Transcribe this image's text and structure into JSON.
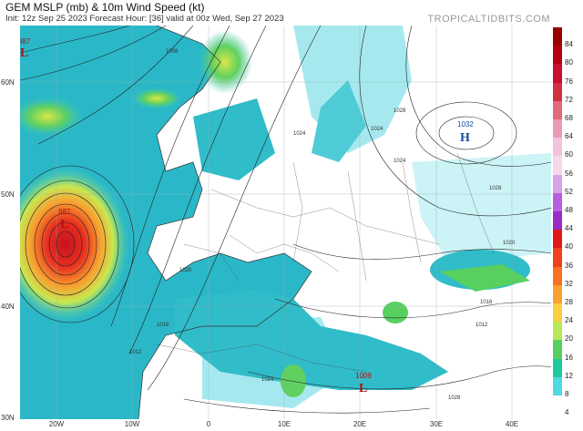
{
  "header": {
    "title": "GEM MSLP (mb) & 10m Wind Speed (kt)",
    "subtitle": "Init: 12z Sep 25 2023   Forecast Hour: [36]   valid at 00z Wed, Sep 27 2023",
    "site": "TROPICALTIDBITS.COM"
  },
  "axes": {
    "lat_labels": [
      "60N",
      "50N",
      "40N",
      "30N"
    ],
    "lon_labels": [
      "20W",
      "10W",
      "0",
      "10E",
      "20E",
      "30E",
      "40E"
    ]
  },
  "legend": {
    "unit": "kt",
    "ticks": [
      "84",
      "80",
      "76",
      "72",
      "68",
      "64",
      "60",
      "56",
      "52",
      "48",
      "44",
      "40",
      "36",
      "32",
      "28",
      "24",
      "20",
      "16",
      "12",
      "8",
      "4"
    ],
    "colors": [
      "#9a0000",
      "#b40010",
      "#c8102e",
      "#d03040",
      "#e06a7c",
      "#ea9cb2",
      "#f2c2dc",
      "#f6d8ec",
      "#d6a2e8",
      "#b860e0",
      "#9a2cc8",
      "#e01818",
      "#f04020",
      "#f87020",
      "#f8a030",
      "#f8d040",
      "#b8e858",
      "#58d060",
      "#20c8a0",
      "#50d8e0",
      "#ffffff"
    ]
  },
  "pressure_systems": [
    {
      "type": "L",
      "value": "987",
      "color": "#b01010"
    },
    {
      "type": "L",
      "value": "987",
      "color": "#b01010"
    },
    {
      "type": "H",
      "value": "1032",
      "color": "#1a4aa0"
    },
    {
      "type": "L",
      "value": "1009",
      "color": "#b01010"
    }
  ],
  "isobar_labels": [
    "1008",
    "1024",
    "1028",
    "1024",
    "1020",
    "1016",
    "1012",
    "1020",
    "1024",
    "1028",
    "1016",
    "1012",
    "1024",
    "1028"
  ]
}
